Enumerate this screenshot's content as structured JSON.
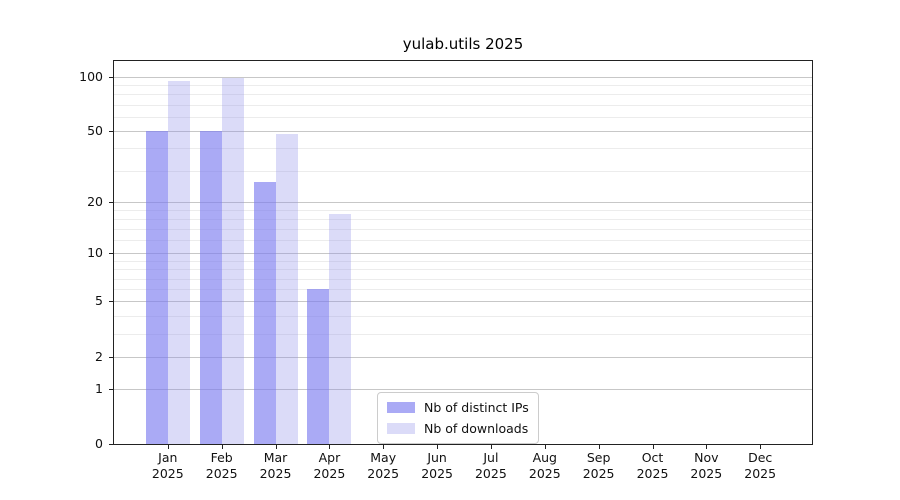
{
  "chart_data": {
    "type": "bar",
    "title": "yulab.utils 2025",
    "categories": [
      "Jan",
      "Feb",
      "Mar",
      "Apr",
      "May",
      "Jun",
      "Jul",
      "Aug",
      "Sep",
      "Oct",
      "Nov",
      "Dec"
    ],
    "x_tick_year": "2025",
    "series": [
      {
        "name": "Nb of distinct IPs",
        "color": "#aaaaf5",
        "fill": "rgba(124,124,240,0.65)",
        "values": [
          50,
          50,
          26,
          6,
          null,
          null,
          null,
          null,
          null,
          null,
          null,
          null
        ]
      },
      {
        "name": "Nb of downloads",
        "color": "#dbdbf8",
        "fill": "rgba(135,135,232,0.30)",
        "values": [
          95,
          98,
          48,
          17,
          null,
          null,
          null,
          null,
          null,
          null,
          null,
          null
        ]
      }
    ],
    "yscale": "log1p",
    "ylim": [
      0,
      122
    ],
    "y_major_ticks": [
      100,
      50,
      20,
      10,
      5,
      2,
      1,
      0
    ],
    "y_minor_ticks": [
      3,
      4,
      6,
      7,
      8,
      9,
      12,
      14,
      16,
      18,
      30,
      40,
      60,
      70,
      80,
      90
    ],
    "grid": true,
    "legend_position": "lower center",
    "colors": {
      "spine": "#222222",
      "grid_major": "#c7c7c7",
      "grid_minor": "#ececec"
    }
  }
}
